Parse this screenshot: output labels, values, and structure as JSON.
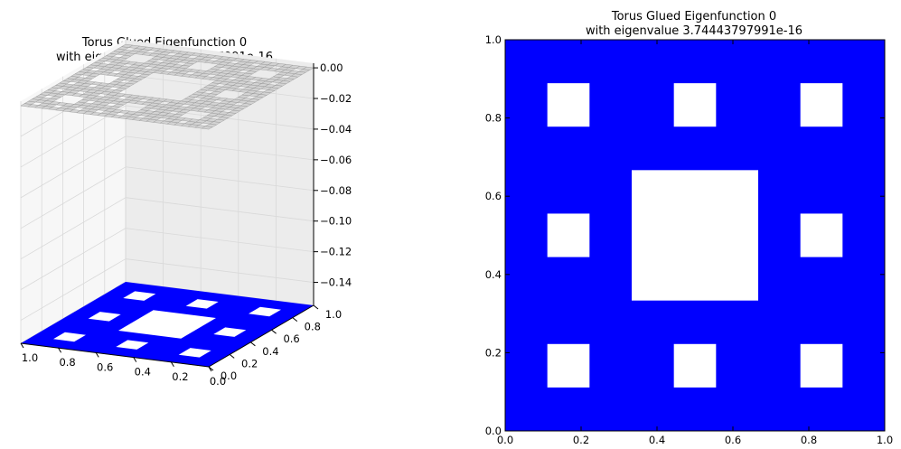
{
  "chart_data": [
    {
      "type": "surface3d",
      "title_line1": "Torus Glued Eigenfunction 0",
      "title_line2": "with eigenvalue 3.74443797991e-16",
      "x_ticks": [
        "0.0",
        "0.2",
        "0.4",
        "0.6",
        "0.8",
        "1.0"
      ],
      "y_ticks": [
        "0.0",
        "0.2",
        "0.4",
        "0.6",
        "0.8",
        "1.0"
      ],
      "z_ticks": [
        "0.00",
        "−0.02",
        "−0.04",
        "−0.06",
        "−0.08",
        "−0.10",
        "−0.12",
        "−0.14"
      ],
      "xlim": [
        0,
        1
      ],
      "ylim": [
        0,
        1
      ],
      "zlim": [
        -0.155,
        0.003
      ],
      "surface_value": 0,
      "projection_value": -0.155,
      "fractal": "sierpinski-carpet",
      "fractal_level": 2,
      "surface_color": "#d3d3d3",
      "projection_color": "#0000ff"
    },
    {
      "type": "heatmap",
      "title_line1": "Torus Glued Eigenfunction 0",
      "title_line2": "with eigenvalue 3.74443797991e-16",
      "x_ticks": [
        "0.0",
        "0.2",
        "0.4",
        "0.6",
        "0.8",
        "1.0"
      ],
      "y_ticks": [
        "0.0",
        "0.2",
        "0.4",
        "0.6",
        "0.8",
        "1.0"
      ],
      "xlim": [
        0,
        1
      ],
      "ylim": [
        0,
        1
      ],
      "fractal": "sierpinski-carpet",
      "fractal_level": 2,
      "fill_color": "#0000ff",
      "hole_color": "#ffffff"
    }
  ]
}
